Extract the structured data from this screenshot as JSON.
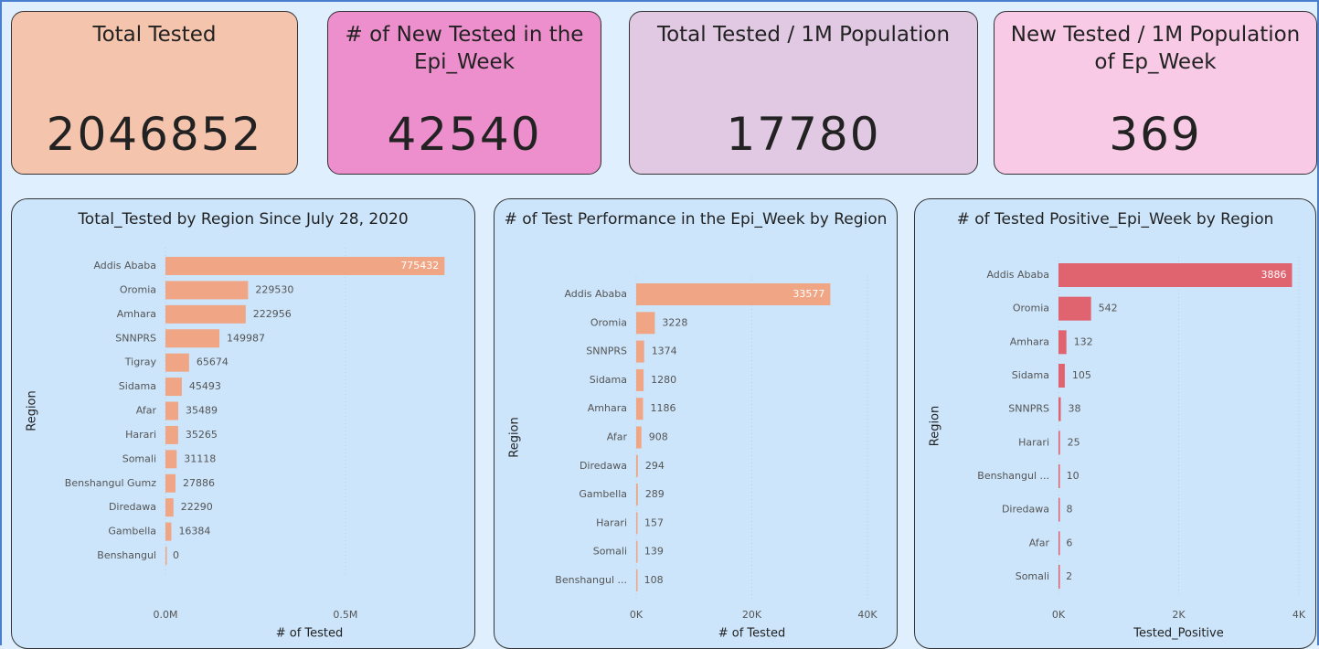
{
  "cards": [
    {
      "title": "Total Tested",
      "value": 2046852,
      "color": "#f4c4ad"
    },
    {
      "title": "# of New Tested in the Epi_Week",
      "value": 42540,
      "color": "#ee8fcd"
    },
    {
      "title": "Total Tested / 1M Population",
      "value": 17780,
      "color": "#e1c9e3"
    },
    {
      "title": "New Tested / 1M Population of Ep_Week",
      "value": 369,
      "color": "#f8cae6"
    }
  ],
  "chart_data": [
    {
      "type": "bar",
      "title": "Total_Tested by Region Since July 28, 2020",
      "x_label": "# of Tested",
      "y_label": "Region",
      "categories": [
        "Addis Ababa",
        "Oromia",
        "Amhara",
        "SNNPRS",
        "Tigray",
        "Sidama",
        "Afar",
        "Harari",
        "Somali",
        "Benshangul Gumz",
        "Diredawa",
        "Gambella",
        "Benshangul"
      ],
      "values": [
        775432,
        229530,
        222956,
        149987,
        65674,
        45493,
        35489,
        35265,
        31118,
        27886,
        22290,
        16384,
        0
      ],
      "color": "#f0a585",
      "xlim": [
        0,
        800000
      ],
      "xticks": [
        {
          "value": 0,
          "label": "0.0M"
        },
        {
          "value": 500000,
          "label": "0.5M"
        }
      ],
      "grid": true
    },
    {
      "type": "bar",
      "title": "# of Test Performance in the Epi_Week by Region",
      "x_label": "# of Tested",
      "y_label": "Region",
      "categories": [
        "Addis Ababa",
        "Oromia",
        "SNNPRS",
        "Sidama",
        "Amhara",
        "Afar",
        "Diredawa",
        "Gambella",
        "Harari",
        "Somali",
        "Benshangul ..."
      ],
      "values": [
        33577,
        3228,
        1374,
        1280,
        1186,
        908,
        294,
        289,
        157,
        139,
        108
      ],
      "color": "#f0a585",
      "xlim": [
        0,
        40000
      ],
      "xticks": [
        {
          "value": 0,
          "label": "0K"
        },
        {
          "value": 20000,
          "label": "20K"
        },
        {
          "value": 40000,
          "label": "40K"
        }
      ],
      "grid": true
    },
    {
      "type": "bar",
      "title": "# of Tested Positive_Epi_Week by Region",
      "x_label": "Tested_Positive",
      "y_label": "Region",
      "categories": [
        "Addis Ababa",
        "Oromia",
        "Amhara",
        "Sidama",
        "SNNPRS",
        "Harari",
        "Benshangul ...",
        "Diredawa",
        "Afar",
        "Somali"
      ],
      "values": [
        3886,
        542,
        132,
        105,
        38,
        25,
        10,
        8,
        6,
        2
      ],
      "color": "#e0646f",
      "xlim": [
        0,
        4000
      ],
      "xticks": [
        {
          "value": 0,
          "label": "0K"
        },
        {
          "value": 2000,
          "label": "2K"
        },
        {
          "value": 4000,
          "label": "4K"
        }
      ],
      "grid": true
    }
  ]
}
